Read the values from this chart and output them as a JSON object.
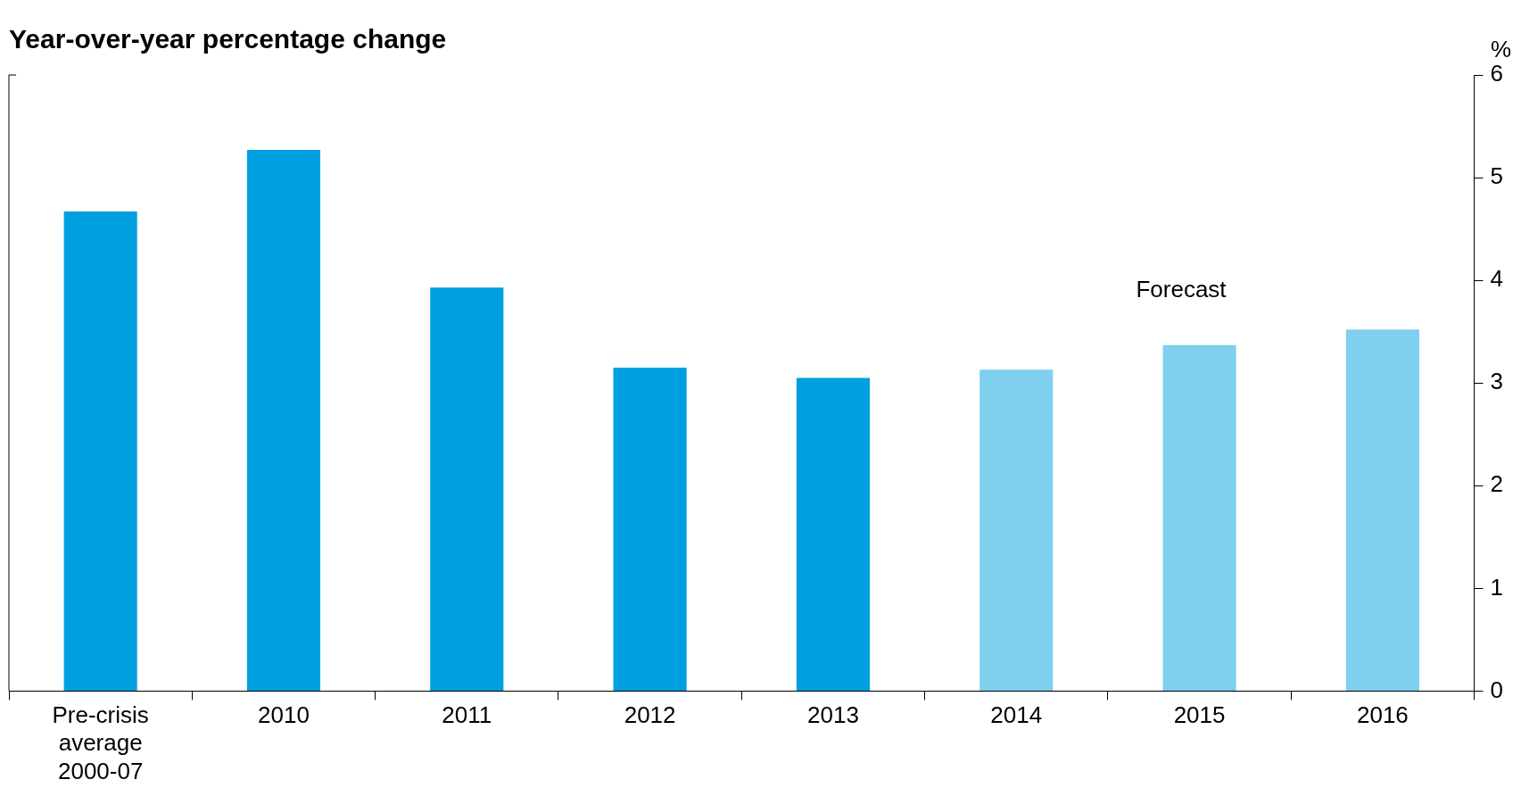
{
  "chart_data": {
    "type": "bar",
    "title": "Year-over-year percentage change",
    "ylabel": "%",
    "categories": [
      "Pre-crisis average 2000-07",
      "2010",
      "2011",
      "2012",
      "2013",
      "2014",
      "2015",
      "2016"
    ],
    "values": [
      4.67,
      5.27,
      3.93,
      3.15,
      3.05,
      3.13,
      3.37,
      3.52
    ],
    "colors": [
      "#009fdf",
      "#009fdf",
      "#009fdf",
      "#009fdf",
      "#009fdf",
      "#7fcfef",
      "#7fcfef",
      "#7fcfef"
    ],
    "ylim": [
      0,
      6
    ],
    "yticks": [
      0,
      1,
      2,
      3,
      4,
      5,
      6
    ],
    "grid": false,
    "legend": false,
    "annotations": [
      "Forecast"
    ]
  }
}
